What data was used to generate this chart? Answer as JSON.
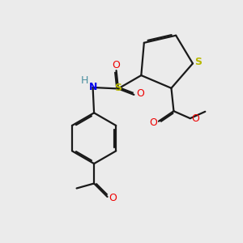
{
  "bg_color": "#ebebeb",
  "bond_color": "#1a1a1a",
  "lw": 1.6,
  "dbo": 0.055,
  "S_color": "#b8b800",
  "N_color": "#0000ee",
  "O_color": "#ee0000",
  "H_color": "#4a8fa0",
  "figsize": [
    3.0,
    3.0
  ],
  "dpi": 100,
  "xlim": [
    0,
    10
  ],
  "ylim": [
    0,
    10
  ]
}
